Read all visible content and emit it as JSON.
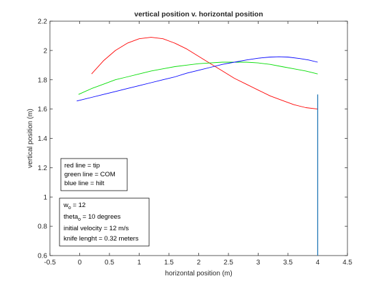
{
  "chart_data": {
    "type": "line",
    "title": "vertical position v. horizontal position",
    "xlabel": "horizontal position (m)",
    "ylabel": "vertical position (m)",
    "xlim": [
      -0.5,
      4.5
    ],
    "ylim": [
      0.6,
      2.2
    ],
    "xticks": [
      "-0.5",
      "0",
      "0.5",
      "1",
      "1.5",
      "2",
      "2.5",
      "3",
      "3.5",
      "4",
      "4.5"
    ],
    "yticks": [
      "0.6",
      "0.8",
      "1",
      "1.2",
      "1.4",
      "1.6",
      "1.8",
      "2",
      "2.2"
    ],
    "series": [
      {
        "color": "#ff0000",
        "x": [
          0.2,
          0.4,
          0.6,
          0.8,
          1.0,
          1.2,
          1.4,
          1.6,
          1.8,
          2.0,
          2.2,
          2.4,
          2.6,
          2.8,
          3.0,
          3.2,
          3.4,
          3.6,
          3.8,
          4.0
        ],
        "y": [
          1.84,
          1.93,
          2.0,
          2.05,
          2.08,
          2.09,
          2.08,
          2.05,
          2.01,
          1.96,
          1.91,
          1.86,
          1.81,
          1.77,
          1.73,
          1.69,
          1.66,
          1.63,
          1.61,
          1.6
        ]
      },
      {
        "color": "#00dd00",
        "x": [
          -0.02,
          0.2,
          0.4,
          0.6,
          0.8,
          1.0,
          1.2,
          1.4,
          1.6,
          1.8,
          2.0,
          2.2,
          2.4,
          2.6,
          2.8,
          3.0,
          3.2,
          3.4,
          3.6,
          3.8,
          4.0
        ],
        "y": [
          1.7,
          1.74,
          1.77,
          1.8,
          1.82,
          1.84,
          1.86,
          1.875,
          1.89,
          1.9,
          1.91,
          1.915,
          1.92,
          1.92,
          1.92,
          1.915,
          1.905,
          1.89,
          1.875,
          1.86,
          1.84
        ]
      },
      {
        "color": "#0000ff",
        "x": [
          -0.05,
          0.2,
          0.4,
          0.6,
          0.8,
          1.0,
          1.2,
          1.4,
          1.6,
          1.8,
          2.0,
          2.2,
          2.4,
          2.6,
          2.8,
          3.0,
          3.2,
          3.35,
          3.5,
          3.7,
          3.85,
          4.0
        ],
        "y": [
          1.655,
          1.68,
          1.7,
          1.72,
          1.74,
          1.76,
          1.78,
          1.8,
          1.82,
          1.845,
          1.865,
          1.885,
          1.905,
          1.92,
          1.935,
          1.947,
          1.955,
          1.957,
          1.955,
          1.945,
          1.935,
          1.92
        ]
      },
      {
        "color": "#1f77b4",
        "x": [
          4.0,
          4.0
        ],
        "y": [
          0.6,
          1.7
        ]
      }
    ],
    "legend_note": [
      "red line = tip",
      "green line = COM",
      "blue line = hilt"
    ],
    "params": {
      "w_base": "w",
      "w_sub": "o",
      "w_rest": " = 12",
      "theta_base": "theta",
      "theta_sub": "o",
      "theta_rest": " = 10 degrees",
      "velocity": "initial velocity = 12 m/s",
      "knife": "knife lenght = 0.32 meters"
    }
  }
}
